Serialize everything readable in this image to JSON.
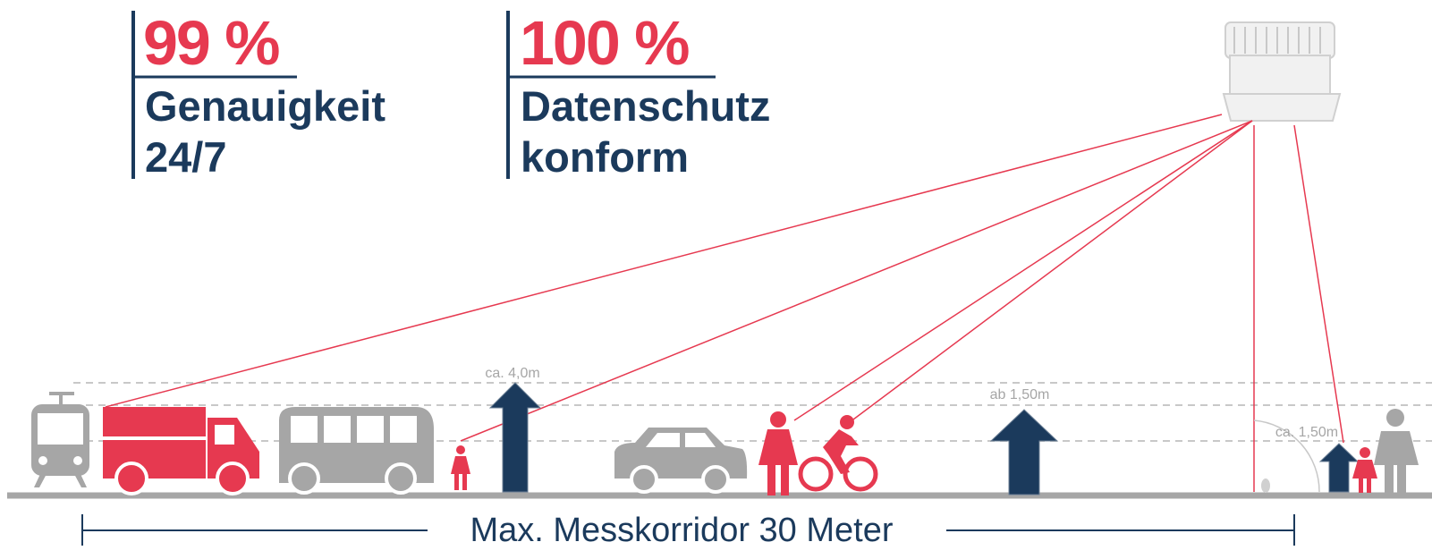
{
  "stats": [
    {
      "value": "99 %",
      "lines": [
        "Genauigkeit",
        "24/7"
      ]
    },
    {
      "value": "100 %",
      "lines": [
        "Datenschutz",
        "konform"
      ]
    }
  ],
  "labels": {
    "height_max": "ca. 4,0m",
    "height_min": "ab 1,50m",
    "sensor_height": "ca. 1,50m"
  },
  "corridor": "Max. Messkorridor 30 Meter"
}
